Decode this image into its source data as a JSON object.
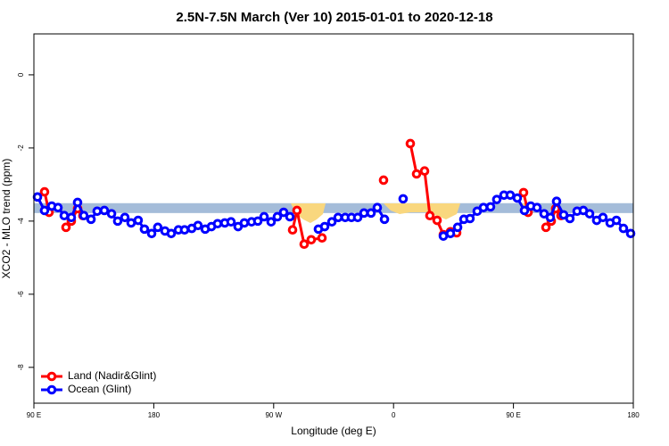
{
  "chart_data": {
    "type": "line",
    "title": "2.5N-7.5N March (Ver 10)   2015-01-01 to 2020-12-18",
    "xlabel": "Longitude (deg E)",
    "ylabel": "XCO2 - MLO trend (ppm)",
    "xlim": [
      90,
      540
    ],
    "xticks": [
      {
        "value": 90,
        "label": "90 E"
      },
      {
        "value": 180,
        "label": "180"
      },
      {
        "value": 270,
        "label": "90 W"
      },
      {
        "value": 360,
        "label": "0"
      },
      {
        "value": 450,
        "label": "90 E"
      },
      {
        "value": 540,
        "label": "180"
      }
    ],
    "ylim": [
      -8.98,
      1.12
    ],
    "yticks": [
      0,
      -2,
      -4,
      -6,
      -8
    ],
    "band": [
      -3.51,
      -3.78
    ],
    "band_color": "#a4bcd9",
    "legend": "bottom-left",
    "series": [
      {
        "name": "Land (Nadir&Glint)",
        "color": "#ff0000",
        "x": [
          98.0,
          101.4,
          null,
          114.1,
          118.1,
          122.8,
          126.8,
          null,
          284.2,
          287.5,
          292.9,
          298.2,
          306.3,
          null,
          352.5,
          null,
          372.6,
          377.3,
          383.3,
          387.3,
          392.7,
          397.4,
          402.7,
          407.4,
          null,
          457.6,
          461.0,
          null,
          474.4,
          478.4,
          481.7,
          485.7
        ],
        "values": [
          -3.2,
          -3.76,
          null,
          -4.17,
          -4.0,
          -3.66,
          -3.85,
          null,
          -4.24,
          -3.71,
          -4.63,
          -4.51,
          -4.46,
          null,
          -2.88,
          null,
          -1.88,
          -2.71,
          -2.63,
          -3.85,
          -3.98,
          -4.37,
          -4.29,
          -4.32,
          null,
          -3.22,
          -3.76,
          null,
          -4.17,
          -4.0,
          -3.66,
          -3.85
        ]
      },
      {
        "name": "Ocean (Glint)",
        "color": "#0000ff",
        "x": [
          92.7,
          98.0,
          103.4,
          108.1,
          112.8,
          118.1,
          122.8,
          127.5,
          132.9,
          137.5,
          142.9,
          148.3,
          152.9,
          158.3,
          163.0,
          168.3,
          173.0,
          178.4,
          183.0,
          188.4,
          193.1,
          198.5,
          203.1,
          208.5,
          213.2,
          218.6,
          223.3,
          227.9,
          233.3,
          238.0,
          243.3,
          248.0,
          253.4,
          258.1,
          262.8,
          268.1,
          272.8,
          277.5,
          282.2,
          null,
          303.6,
          308.3,
          313.7,
          318.4,
          323.7,
          328.4,
          333.1,
          337.8,
          343.1,
          347.8,
          353.2,
          null,
          367.2,
          null,
          397.4,
          402.7,
          408.1,
          412.8,
          417.4,
          422.8,
          427.5,
          432.8,
          437.5,
          442.9,
          447.6,
          452.9,
          458.3,
          463.0,
          467.7,
          473.0,
          477.7,
          482.4,
          487.7,
          492.4,
          497.8,
          502.5,
          507.2,
          512.5,
          517.2,
          522.6,
          527.3,
          532.6,
          538.0
        ],
        "values": [
          -3.34,
          -3.71,
          -3.59,
          -3.63,
          -3.85,
          -3.9,
          -3.49,
          -3.85,
          -3.95,
          -3.73,
          -3.71,
          -3.8,
          -4.0,
          -3.9,
          -4.05,
          -3.98,
          -4.22,
          -4.34,
          -4.17,
          -4.27,
          -4.34,
          -4.24,
          -4.24,
          -4.2,
          -4.12,
          -4.22,
          -4.15,
          -4.07,
          -4.05,
          -4.02,
          -4.15,
          -4.05,
          -4.02,
          -4.0,
          -3.88,
          -4.02,
          -3.88,
          -3.76,
          -3.88,
          null,
          -4.22,
          -4.15,
          -4.02,
          -3.9,
          -3.9,
          -3.9,
          -3.9,
          -3.78,
          -3.78,
          -3.63,
          -3.95,
          null,
          -3.39,
          null,
          -4.41,
          -4.34,
          -4.17,
          -3.95,
          -3.93,
          -3.73,
          -3.63,
          -3.61,
          -3.41,
          -3.29,
          -3.29,
          -3.37,
          -3.71,
          -3.59,
          -3.63,
          -3.8,
          -3.9,
          -3.46,
          -3.83,
          -3.93,
          -3.73,
          -3.71,
          -3.8,
          -3.98,
          -3.9,
          -4.05,
          -3.98,
          -4.2,
          -4.34
        ]
      }
    ]
  }
}
